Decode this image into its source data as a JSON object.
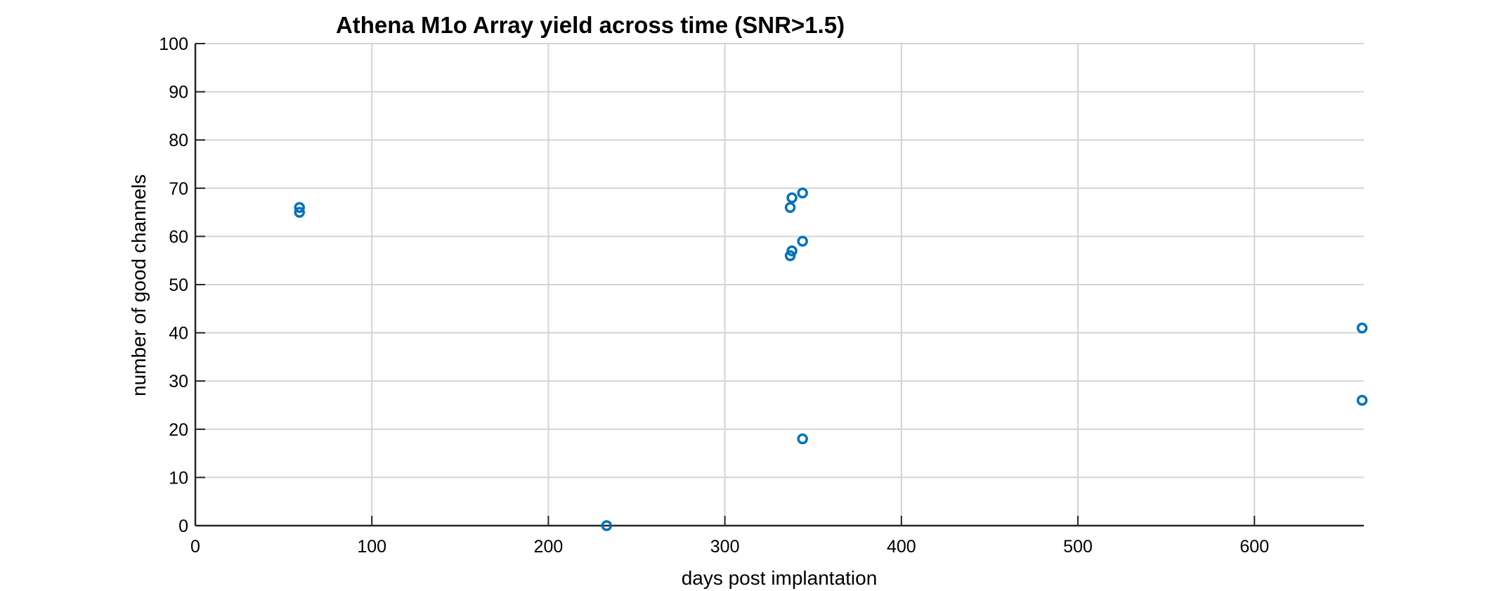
{
  "chart_data": {
    "type": "scatter",
    "title": "Athena M1o Array yield across time (SNR>1.5)",
    "xlabel": "days post implantation",
    "ylabel": "number of good channels",
    "xlim": [
      0,
      662
    ],
    "ylim": [
      0,
      100
    ],
    "xticks": [
      0,
      100,
      200,
      300,
      400,
      500,
      600
    ],
    "yticks": [
      0,
      10,
      20,
      30,
      40,
      50,
      60,
      70,
      80,
      90,
      100
    ],
    "grid": true,
    "marker": "open-circle",
    "marker_color": "#0072BD",
    "series": [
      {
        "points": [
          {
            "x": 59,
            "y": 66
          },
          {
            "x": 59,
            "y": 65
          },
          {
            "x": 233,
            "y": 0
          },
          {
            "x": 337,
            "y": 66
          },
          {
            "x": 338,
            "y": 68
          },
          {
            "x": 344,
            "y": 69
          },
          {
            "x": 337,
            "y": 56
          },
          {
            "x": 338,
            "y": 57
          },
          {
            "x": 344,
            "y": 59
          },
          {
            "x": 344,
            "y": 18
          },
          {
            "x": 661,
            "y": 41
          },
          {
            "x": 661,
            "y": 26
          }
        ]
      }
    ]
  }
}
